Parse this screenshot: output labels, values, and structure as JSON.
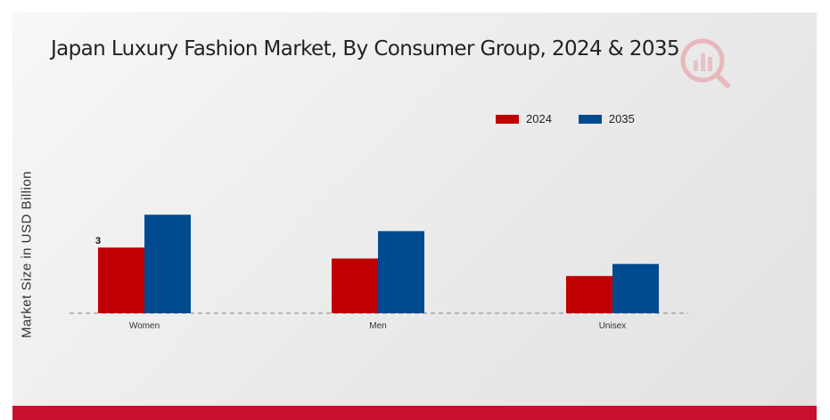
{
  "chart_data": {
    "type": "bar",
    "title": "Japan Luxury Fashion Market, By Consumer Group, 2024 & 2035",
    "ylabel": "Market Size in USD Billion",
    "categories": [
      "Women",
      "Men",
      "Unisex"
    ],
    "series": [
      {
        "name": "2024",
        "color": "#c00000",
        "values": [
          3.0,
          2.5,
          1.7
        ]
      },
      {
        "name": "2035",
        "color": "#004a8f",
        "values": [
          4.5,
          3.75,
          2.25
        ]
      }
    ],
    "data_labels": [
      {
        "series": 0,
        "category": 0,
        "text": "3"
      }
    ],
    "ylim": [
      0,
      10
    ],
    "legend_position": "top-right",
    "grid": false
  }
}
